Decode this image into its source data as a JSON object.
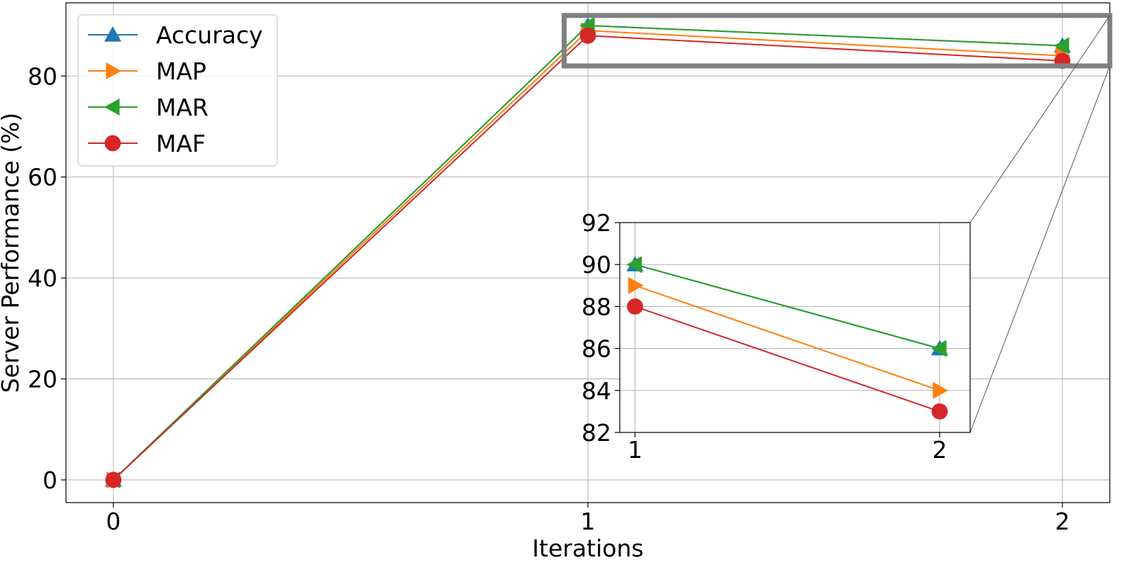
{
  "chart_data": {
    "type": "line",
    "xlabel": "Iterations",
    "ylabel": "Server Performance (%)",
    "x": [
      0,
      1,
      2
    ],
    "xlim": [
      -0.1,
      2.1
    ],
    "ylim": [
      -4.5,
      94.5
    ],
    "xticks": [
      "0",
      "1",
      "2"
    ],
    "yticks": [
      "0",
      "20",
      "40",
      "60",
      "80"
    ],
    "grid": true,
    "legend_position": "upper-left",
    "series": [
      {
        "name": "Accuracy",
        "values": [
          0,
          90,
          86
        ],
        "color": "#1f77b4",
        "marker": "triangle-up"
      },
      {
        "name": "MAP",
        "values": [
          0,
          89,
          84
        ],
        "color": "#ff7f0e",
        "marker": "triangle-right"
      },
      {
        "name": "MAR",
        "values": [
          0,
          90,
          86
        ],
        "color": "#2ca02c",
        "marker": "triangle-left"
      },
      {
        "name": "MAF",
        "values": [
          0,
          88,
          83
        ],
        "color": "#d62728",
        "marker": "circle"
      }
    ],
    "inset": {
      "x": [
        1,
        2
      ],
      "xlim": [
        0.95,
        2.1
      ],
      "ylim": [
        82,
        92
      ],
      "xticks": [
        "1",
        "2"
      ],
      "yticks": [
        "82",
        "84",
        "86",
        "88",
        "90",
        "92"
      ],
      "zoom_region": {
        "xlim": [
          0.95,
          2.1
        ],
        "ylim": [
          82,
          92
        ]
      }
    }
  }
}
